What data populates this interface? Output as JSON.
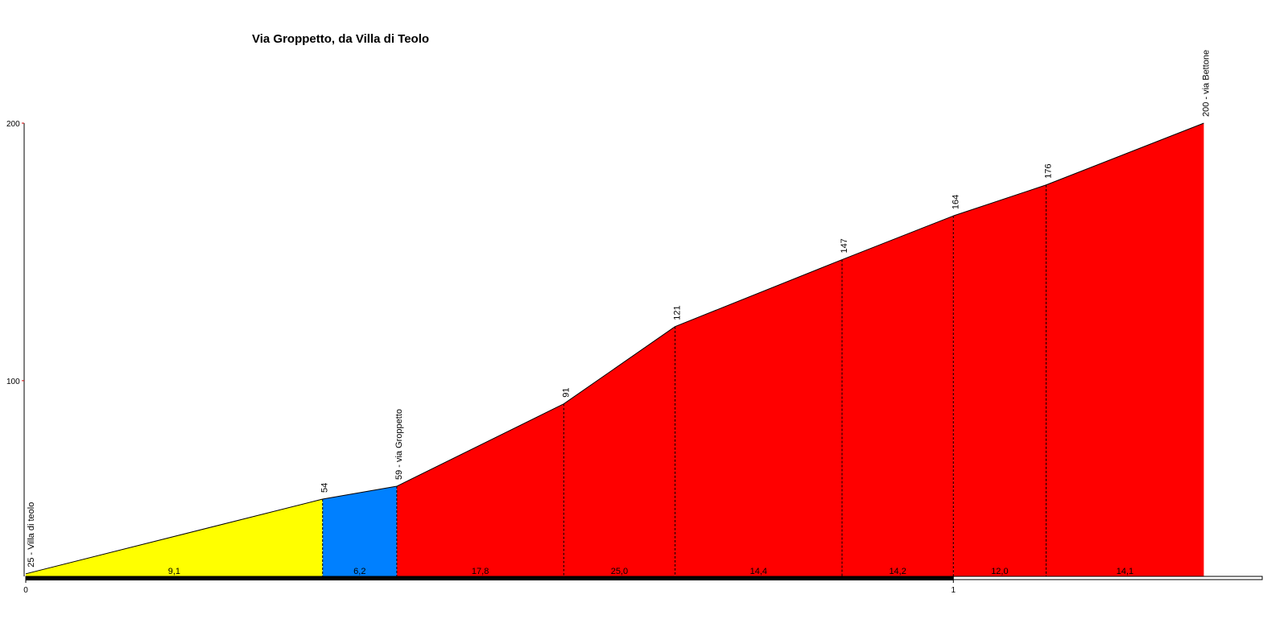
{
  "chart_data": {
    "type": "profile",
    "title": "Via Groppetto, da Villa di Teolo",
    "x": [
      0,
      0.32,
      0.4,
      0.58,
      0.7,
      0.88,
      1.0,
      1.1,
      1.27
    ],
    "values": [
      25,
      54,
      59,
      91,
      121,
      147,
      164,
      176,
      200
    ],
    "value_labels": [
      "25 - Villa di teolo",
      "54",
      "59 - via Groppetto",
      "91",
      "121",
      "147",
      "164",
      "176",
      "200 - via Bettone"
    ],
    "gradients": [
      9.1,
      6.2,
      17.8,
      25.0,
      14.4,
      14.2,
      12.0,
      14.1
    ],
    "gradient_labels": [
      "9,1",
      "6,2",
      "17,8",
      "25,0",
      "14,4",
      "14,2",
      "12,0",
      "14,1"
    ],
    "colors": [
      "#ffff00",
      "#0080ff",
      "#ff0000",
      "#ff0000",
      "#ff0000",
      "#ff0000",
      "#ff0000",
      "#ff0000"
    ],
    "xlim": [
      0,
      1.333
    ],
    "xticks": [
      0,
      1
    ],
    "ylim": [
      24,
      200
    ],
    "yticks": [
      100,
      200
    ]
  }
}
